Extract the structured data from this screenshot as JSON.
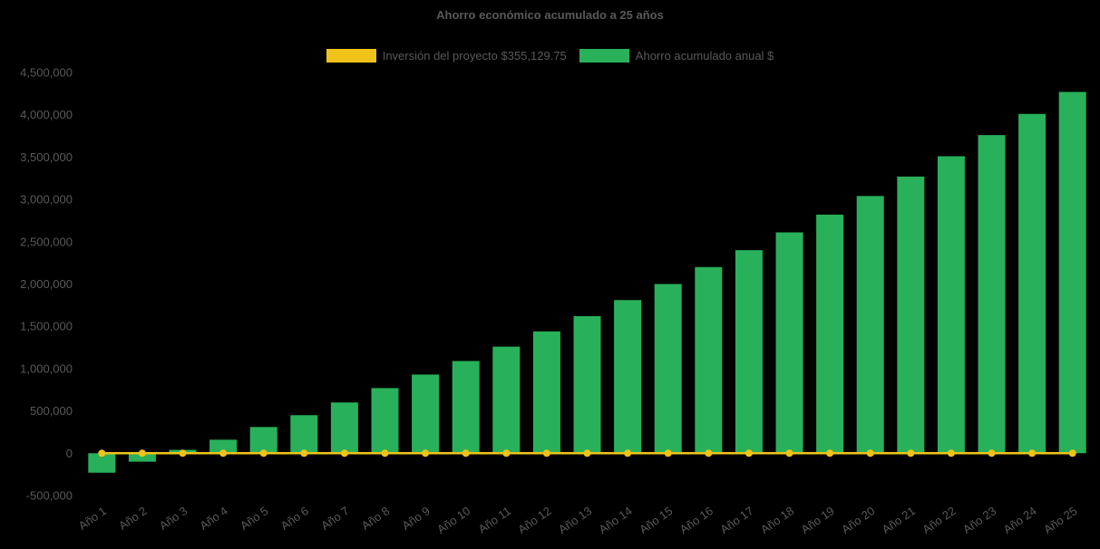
{
  "page": {
    "background": "#000000",
    "text_color": "#595959"
  },
  "chart_data": {
    "type": "bar",
    "title": "Ahorro económico acumulado a 25 años",
    "categories": [
      "Año 1",
      "Año 2",
      "Año 3",
      "Año 4",
      "Año 5",
      "Año 6",
      "Año 7",
      "Año 8",
      "Año 9",
      "Año 10",
      "Año 11",
      "Año 12",
      "Año 13",
      "Año 14",
      "Año 15",
      "Año 16",
      "Año 17",
      "Año 18",
      "Año 19",
      "Año 20",
      "Año 21",
      "Año 22",
      "Año 23",
      "Año 24",
      "Año 25"
    ],
    "series": [
      {
        "name": "Inversión del proyecto $355,129.75",
        "type": "line",
        "color": "#EFC319",
        "values": [
          0,
          0,
          0,
          0,
          0,
          0,
          0,
          0,
          0,
          0,
          0,
          0,
          0,
          0,
          0,
          0,
          0,
          0,
          0,
          0,
          0,
          0,
          0,
          0,
          0
        ]
      },
      {
        "name": "Ahorro acumulado anual $",
        "type": "bar",
        "color": "#28B15A",
        "values": [
          -230000,
          -100000,
          40000,
          160000,
          310000,
          450000,
          600000,
          770000,
          930000,
          1090000,
          1260000,
          1440000,
          1620000,
          1810000,
          2000000,
          2200000,
          2400000,
          2610000,
          2820000,
          3040000,
          3270000,
          3510000,
          3760000,
          4010000,
          4270000
        ]
      }
    ],
    "y_axis": {
      "min": -500000,
      "max": 4500000,
      "tick_step": 500000,
      "tick_labels": [
        "4,500,000",
        "4,000,000",
        "3,500,000",
        "3,000,000",
        "2,500,000",
        "2,000,000",
        "1,500,000",
        "1,000,000",
        "500,000",
        "0",
        "-500,000"
      ]
    },
    "x_axis": {
      "label_rotation_deg": -35
    },
    "legend_position": "top",
    "grid": false
  }
}
